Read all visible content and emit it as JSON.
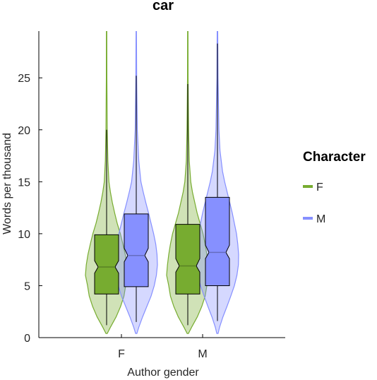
{
  "chart_data": {
    "type": "violin",
    "title": "car",
    "xlabel": "Author gender",
    "ylabel": "Words per thousand",
    "categories": [
      "F",
      "M"
    ],
    "ylim": [
      0,
      29.5
    ],
    "yticks": [
      0,
      5,
      10,
      15,
      20,
      25
    ],
    "grid": false,
    "legend": {
      "title": "Character",
      "position": "right",
      "entries": [
        "F",
        "M"
      ]
    },
    "series": [
      {
        "name": "F",
        "color": "#77AC30",
        "groups": [
          {
            "category": "F",
            "box": {
              "q1": 4.2,
              "median": 6.8,
              "q3": 9.9,
              "notch_low": 6.2,
              "notch_high": 7.4,
              "whisker_low": 1.2,
              "whisker_high": 20.0
            },
            "density": [
              [
                0.4,
                0.03
              ],
              [
                1.0,
                0.18
              ],
              [
                2.0,
                0.45
              ],
              [
                3.0,
                0.66
              ],
              [
                4.0,
                0.82
              ],
              [
                5.0,
                0.9
              ],
              [
                6.0,
                1.0
              ],
              [
                7.0,
                0.96
              ],
              [
                8.0,
                0.88
              ],
              [
                9.0,
                0.77
              ],
              [
                10.0,
                0.65
              ],
              [
                11.0,
                0.5
              ],
              [
                12.0,
                0.38
              ],
              [
                13.0,
                0.27
              ],
              [
                14.0,
                0.18
              ],
              [
                15.0,
                0.11
              ],
              [
                17.0,
                0.06
              ],
              [
                20.0,
                0.03
              ],
              [
                25.0,
                0.015
              ],
              [
                29.5,
                0.01
              ]
            ]
          },
          {
            "category": "M",
            "box": {
              "q1": 4.2,
              "median": 6.9,
              "q3": 10.9,
              "notch_low": 6.3,
              "notch_high": 7.6,
              "whisker_low": 1.2,
              "whisker_high": 24.4
            },
            "density": [
              [
                0.4,
                0.03
              ],
              [
                1.0,
                0.18
              ],
              [
                2.0,
                0.45
              ],
              [
                3.0,
                0.66
              ],
              [
                4.0,
                0.82
              ],
              [
                5.0,
                0.9
              ],
              [
                6.0,
                1.0
              ],
              [
                7.0,
                0.96
              ],
              [
                8.0,
                0.9
              ],
              [
                9.0,
                0.82
              ],
              [
                10.0,
                0.72
              ],
              [
                11.0,
                0.58
              ],
              [
                12.0,
                0.44
              ],
              [
                13.0,
                0.33
              ],
              [
                14.0,
                0.22
              ],
              [
                15.0,
                0.14
              ],
              [
                17.0,
                0.07
              ],
              [
                20.0,
                0.035
              ],
              [
                25.0,
                0.015
              ],
              [
                29.5,
                0.01
              ]
            ]
          }
        ]
      },
      {
        "name": "M",
        "color": "#8690FF",
        "groups": [
          {
            "category": "F",
            "box": {
              "q1": 4.9,
              "median": 7.9,
              "q3": 11.9,
              "notch_low": 7.3,
              "notch_high": 8.6,
              "whisker_low": 1.5,
              "whisker_high": 25.2
            },
            "density": [
              [
                0.4,
                0.03
              ],
              [
                1.0,
                0.12
              ],
              [
                2.0,
                0.3
              ],
              [
                3.0,
                0.5
              ],
              [
                4.0,
                0.7
              ],
              [
                5.0,
                0.85
              ],
              [
                6.0,
                0.95
              ],
              [
                7.0,
                1.0
              ],
              [
                8.0,
                0.98
              ],
              [
                9.0,
                0.92
              ],
              [
                10.0,
                0.82
              ],
              [
                11.0,
                0.7
              ],
              [
                12.0,
                0.58
              ],
              [
                13.0,
                0.45
              ],
              [
                14.0,
                0.33
              ],
              [
                15.0,
                0.22
              ],
              [
                17.0,
                0.12
              ],
              [
                20.0,
                0.05
              ],
              [
                25.0,
                0.02
              ],
              [
                29.5,
                0.01
              ]
            ]
          },
          {
            "category": "M",
            "box": {
              "q1": 5.0,
              "median": 8.2,
              "q3": 13.5,
              "notch_low": 7.6,
              "notch_high": 8.9,
              "whisker_low": 1.6,
              "whisker_high": 28.3
            },
            "density": [
              [
                0.4,
                0.03
              ],
              [
                1.0,
                0.1
              ],
              [
                2.0,
                0.26
              ],
              [
                3.0,
                0.45
              ],
              [
                4.0,
                0.63
              ],
              [
                5.0,
                0.8
              ],
              [
                6.0,
                0.92
              ],
              [
                7.0,
                0.99
              ],
              [
                8.0,
                1.0
              ],
              [
                9.0,
                0.96
              ],
              [
                10.0,
                0.9
              ],
              [
                11.0,
                0.8
              ],
              [
                12.0,
                0.7
              ],
              [
                13.0,
                0.58
              ],
              [
                14.0,
                0.46
              ],
              [
                15.0,
                0.34
              ],
              [
                16.0,
                0.24
              ],
              [
                18.0,
                0.12
              ],
              [
                20.0,
                0.07
              ],
              [
                25.0,
                0.025
              ],
              [
                29.5,
                0.012
              ]
            ]
          }
        ]
      }
    ]
  }
}
